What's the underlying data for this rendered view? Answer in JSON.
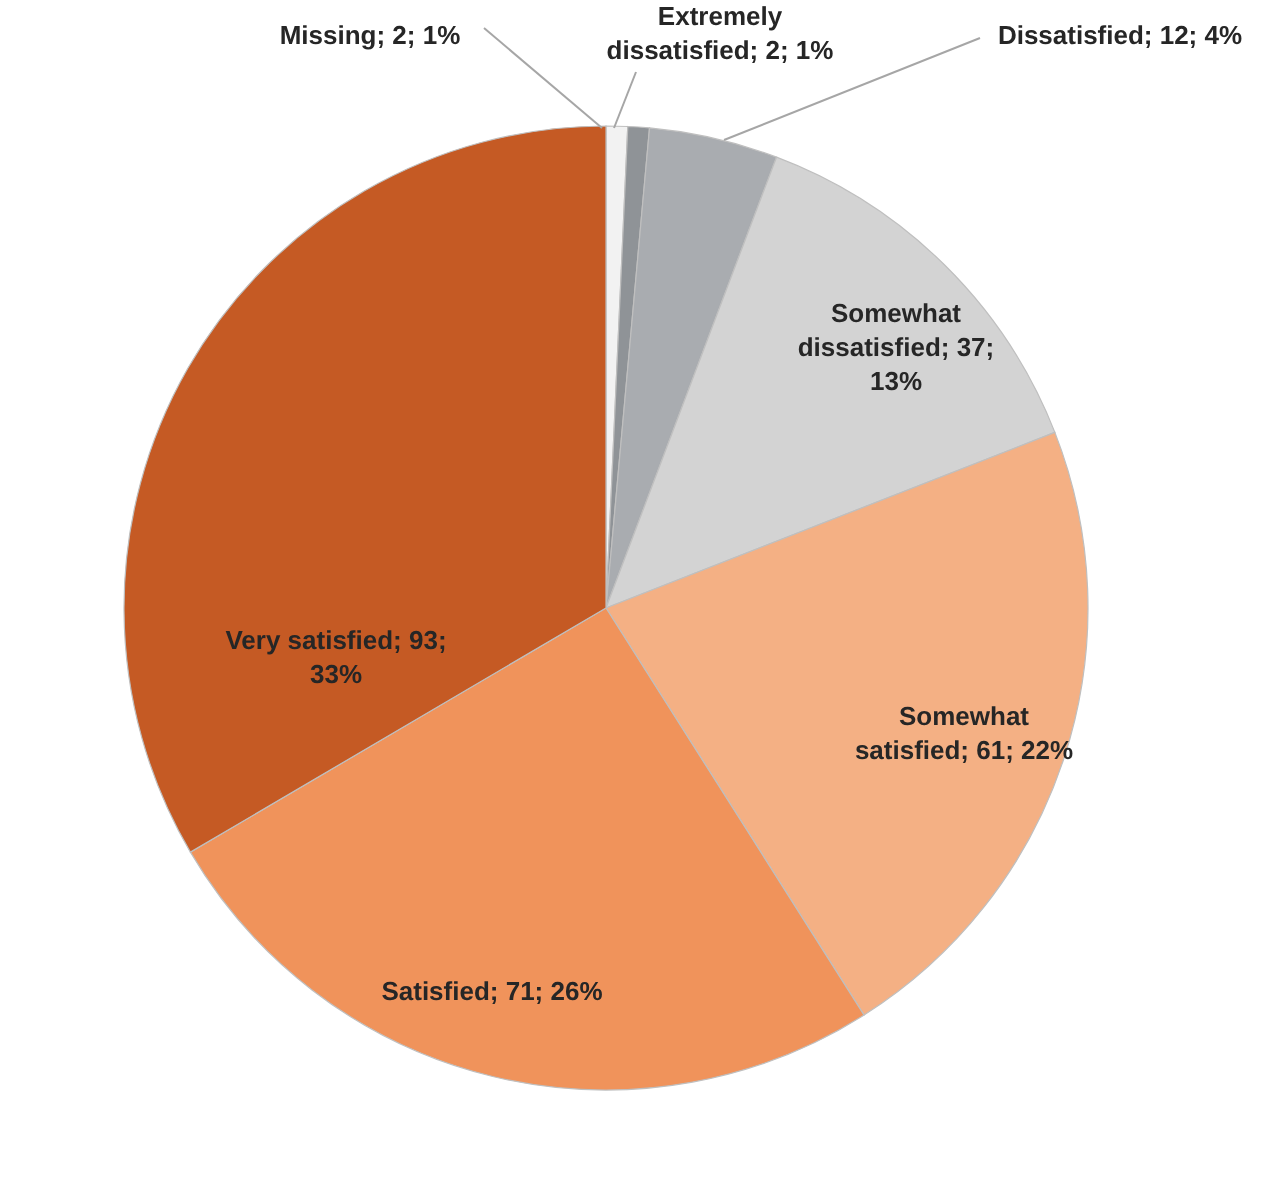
{
  "chart_data": {
    "type": "pie",
    "categories": [
      "Missing",
      "Extremely dissatisfied",
      "Dissatisfied",
      "Somewhat dissatisfied",
      "Somewhat satisfied",
      "Satisfied",
      "Very satisfied"
    ],
    "values": [
      2,
      2,
      12,
      37,
      61,
      71,
      93
    ],
    "colors": [
      "#f2f2f2",
      "#8f9397",
      "#a9acb0",
      "#d3d3d3",
      "#f4b084",
      "#f0935b",
      "#c55a24"
    ],
    "value_labels": [
      "2; 1%",
      "2; 1%",
      "12; 4%",
      "37; 13%",
      "61; 22%",
      "71; 26%",
      "93; 33%"
    ],
    "legend": false
  }
}
